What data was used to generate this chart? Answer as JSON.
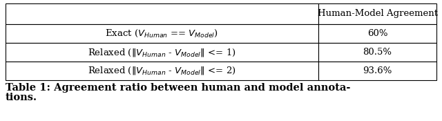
{
  "col_header": "Human-Model Agreement",
  "row_labels": [
    "Exact ($V_{Human}$ == $V_{Model}$)",
    "Relaxed ($\\|V_{Human}$ - $V_{Model}\\|$ <= 1)",
    "Relaxed ($\\|V_{Human}$ - $V_{Model}\\|$ <= 2)"
  ],
  "values": [
    "60%",
    "80.5%",
    "93.6%"
  ],
  "caption_bold": "Table 1: Agreement ratio between human and model annota-\ntions.",
  "border_color": "#000000",
  "font_size": 9.5,
  "caption_font_size": 10.5
}
